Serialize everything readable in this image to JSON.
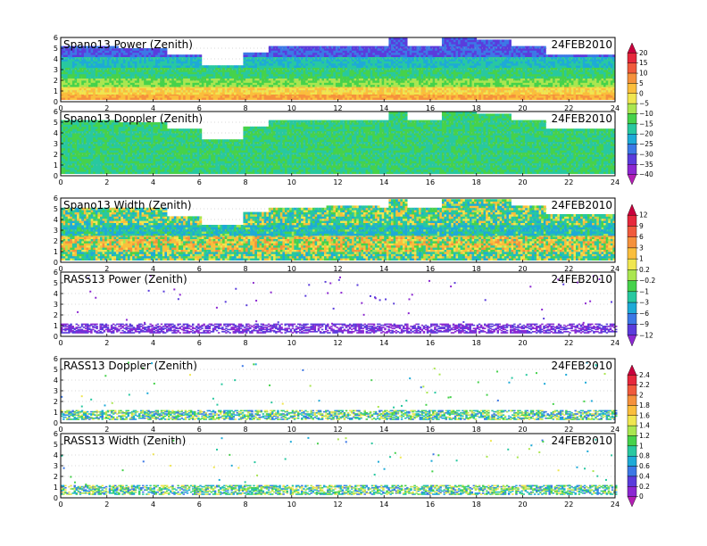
{
  "figure": {
    "date_label": "24FEB2010"
  },
  "chart_data": [
    {
      "type": "heatmap",
      "id": "spano-power",
      "title": "Spano13 Power (Zenith)",
      "date": "24FEB2010",
      "x_range": [
        0,
        24
      ],
      "y_range": [
        0,
        6
      ],
      "x_ticks": [
        0,
        2,
        4,
        6,
        8,
        10,
        12,
        14,
        16,
        18,
        20,
        22,
        24
      ],
      "y_ticks": [
        0,
        1,
        2,
        3,
        4,
        5,
        6
      ],
      "colorbar_id": "cb-power",
      "data_top_km": [
        [
          0,
          5.1
        ],
        [
          2.5,
          5.0
        ],
        [
          4.6,
          4.3
        ],
        [
          6.1,
          3.4
        ],
        [
          7.9,
          4.6
        ],
        [
          9.0,
          5.1
        ],
        [
          11.5,
          5.2
        ],
        [
          13.8,
          5.1
        ],
        [
          14.2,
          5.9
        ],
        [
          15.0,
          5.1
        ],
        [
          16.5,
          5.9
        ],
        [
          18.0,
          5.8
        ],
        [
          19.5,
          5.2
        ],
        [
          21.0,
          4.4
        ],
        [
          24,
          4.2
        ]
      ],
      "band_layers_km": [
        {
          "from": 0.2,
          "to": 0.7,
          "value": 5
        },
        {
          "from": 0.7,
          "to": 1.4,
          "value": 0
        },
        {
          "from": 1.4,
          "to": 2.2,
          "value": -10
        },
        {
          "from": 2.2,
          "to": 3.2,
          "value": -15
        },
        {
          "from": 3.2,
          "to": 4.2,
          "value": -20
        },
        {
          "from": 4.2,
          "to": 6.0,
          "value": -30
        }
      ]
    },
    {
      "type": "heatmap",
      "id": "spano-doppler",
      "title": "Spano13 Doppler (Zenith)",
      "date": "24FEB2010",
      "x_range": [
        0,
        24
      ],
      "y_range": [
        0,
        6
      ],
      "x_ticks": [
        0,
        2,
        4,
        6,
        8,
        10,
        12,
        14,
        16,
        18,
        20,
        22,
        24
      ],
      "y_ticks": [
        0,
        1,
        2,
        3,
        4,
        5,
        6
      ],
      "colorbar_id": "cb-power",
      "data_top_km": [
        [
          0,
          5.1
        ],
        [
          2.5,
          5.0
        ],
        [
          4.6,
          4.3
        ],
        [
          6.1,
          3.4
        ],
        [
          7.9,
          4.6
        ],
        [
          9.0,
          5.1
        ],
        [
          11.5,
          5.2
        ],
        [
          13.8,
          5.1
        ],
        [
          14.2,
          5.9
        ],
        [
          15.0,
          5.1
        ],
        [
          16.5,
          5.9
        ],
        [
          18.0,
          5.8
        ],
        [
          19.5,
          5.2
        ],
        [
          21.0,
          4.4
        ],
        [
          24,
          4.2
        ]
      ],
      "band_layers_km": [
        {
          "from": 0.2,
          "to": 6.0,
          "value": -15
        }
      ]
    },
    {
      "type": "heatmap",
      "id": "spano-width",
      "title": "Spano13 Width (Zenith)",
      "date": "24FEB2010",
      "x_range": [
        0,
        24
      ],
      "y_range": [
        0,
        6
      ],
      "x_ticks": [
        0,
        2,
        4,
        6,
        8,
        10,
        12,
        14,
        16,
        18,
        20,
        22,
        24
      ],
      "y_ticks": [
        0,
        1,
        2,
        3,
        4,
        5,
        6
      ],
      "colorbar_id": "cb-width",
      "data_top_km": [
        [
          0,
          5.1
        ],
        [
          2.5,
          5.0
        ],
        [
          4.6,
          4.3
        ],
        [
          6.1,
          3.4
        ],
        [
          7.9,
          4.6
        ],
        [
          9.0,
          5.1
        ],
        [
          11.5,
          5.2
        ],
        [
          13.8,
          5.1
        ],
        [
          14.2,
          5.9
        ],
        [
          15.0,
          5.1
        ],
        [
          16.5,
          5.9
        ],
        [
          18.0,
          5.8
        ],
        [
          19.5,
          5.2
        ],
        [
          21.0,
          4.4
        ],
        [
          24,
          4.2
        ]
      ],
      "band_layers_km": [
        {
          "from": 0.2,
          "to": 1.0,
          "value": -1
        },
        {
          "from": 1.0,
          "to": 2.5,
          "value": 1
        },
        {
          "from": 2.5,
          "to": 3.5,
          "value": -3
        },
        {
          "from": 3.5,
          "to": 6.0,
          "value": -1
        }
      ]
    },
    {
      "type": "heatmap",
      "id": "rass-power",
      "title": "RASS13 Power (Zenith)",
      "date": "24FEB2010",
      "x_range": [
        0,
        24
      ],
      "y_range": [
        0,
        6
      ],
      "x_ticks": [
        0,
        2,
        4,
        6,
        8,
        10,
        12,
        14,
        16,
        18,
        20,
        22,
        24
      ],
      "y_ticks": [
        0,
        1,
        2,
        3,
        4,
        5,
        6
      ],
      "colorbar_id": "cb-width",
      "data_top_km": [
        [
          0,
          1.2
        ],
        [
          24,
          1.2
        ]
      ],
      "band_layers_km": [
        {
          "from": 0.3,
          "to": 1.2,
          "value": -12
        }
      ]
    },
    {
      "type": "heatmap",
      "id": "rass-doppler",
      "title": "RASS13 Doppler (Zenith)",
      "date": "24FEB2010",
      "x_range": [
        0,
        24
      ],
      "y_range": [
        0,
        6
      ],
      "x_ticks": [
        0,
        2,
        4,
        6,
        8,
        10,
        12,
        14,
        16,
        18,
        20,
        22,
        24
      ],
      "y_ticks": [
        0,
        1,
        2,
        3,
        4,
        5,
        6
      ],
      "colorbar_id": "cb-rass",
      "data_top_km": [
        [
          0,
          1.2
        ],
        [
          24,
          1.2
        ]
      ],
      "band_layers_km": [
        {
          "from": 0.3,
          "to": 1.2,
          "value": 1
        }
      ]
    },
    {
      "type": "heatmap",
      "id": "rass-width",
      "title": "RASS13 Width (Zenith)",
      "date": "24FEB2010",
      "x_range": [
        0,
        24
      ],
      "y_range": [
        0,
        6
      ],
      "x_ticks": [
        0,
        2,
        4,
        6,
        8,
        10,
        12,
        14,
        16,
        18,
        20,
        22,
        24
      ],
      "y_ticks": [
        0,
        1,
        2,
        3,
        4,
        5,
        6
      ],
      "colorbar_id": "cb-rass",
      "data_top_km": [
        [
          0,
          1.2
        ],
        [
          24,
          1.2
        ]
      ],
      "band_layers_km": [
        {
          "from": 0.3,
          "to": 1.2,
          "value": 1
        }
      ]
    }
  ],
  "colorbars": [
    {
      "id": "cb-power",
      "labels": [
        "20",
        "15",
        "10",
        "5",
        "0",
        "−5",
        "−10",
        "−15",
        "−20",
        "−25",
        "−30",
        "−35",
        "−40"
      ],
      "colors": [
        "#c8003c",
        "#e6283c",
        "#f05a3c",
        "#f5913c",
        "#fabe3c",
        "#f0e650",
        "#aae650",
        "#46d24b",
        "#28c8a0",
        "#1eaad7",
        "#3c78e6",
        "#5a3cdc",
        "#8c28d2",
        "#b41eb4"
      ]
    },
    {
      "id": "cb-width",
      "labels": [
        "12",
        "9",
        "6",
        "3",
        "1",
        "0.2",
        "−0.2",
        "−1",
        "−3",
        "−6",
        "−9",
        "−12"
      ],
      "colors": [
        "#c8003c",
        "#e6283c",
        "#f05a3c",
        "#f5913c",
        "#fabe3c",
        "#f0e650",
        "#aae650",
        "#46d24b",
        "#28c8a0",
        "#1eaad7",
        "#3c78e6",
        "#5a3cdc",
        "#8c28d2"
      ]
    },
    {
      "id": "cb-rass",
      "labels": [
        "2.4",
        "2.2",
        "2",
        "1.8",
        "1.6",
        "1.4",
        "1.2",
        "1",
        "0.8",
        "0.6",
        "0.4",
        "0.2",
        "0"
      ],
      "colors": [
        "#c8003c",
        "#e6283c",
        "#f05a3c",
        "#f5913c",
        "#fabe3c",
        "#f0e650",
        "#aae650",
        "#46d24b",
        "#28c8a0",
        "#1eaad7",
        "#3c78e6",
        "#5a3cdc",
        "#8c28d2",
        "#b41eb4"
      ]
    }
  ]
}
